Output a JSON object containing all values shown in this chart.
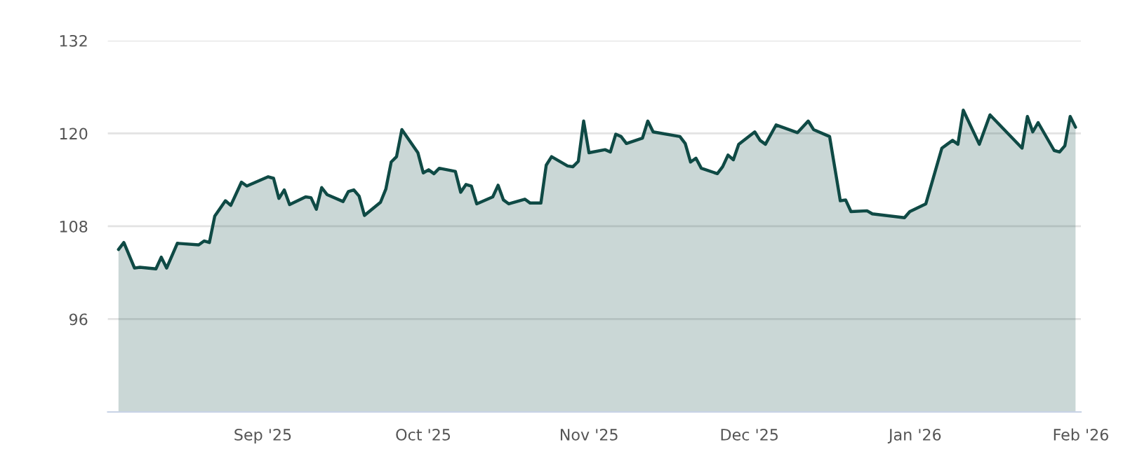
{
  "chart_data": {
    "type": "area",
    "x": [
      "2025-08-05",
      "2025-08-06",
      "2025-08-08",
      "2025-08-09",
      "2025-08-12",
      "2025-08-13",
      "2025-08-14",
      "2025-08-16",
      "2025-08-20",
      "2025-08-21",
      "2025-08-22",
      "2025-08-23",
      "2025-08-25",
      "2025-08-26",
      "2025-08-28",
      "2025-08-29",
      "2025-09-02",
      "2025-09-03",
      "2025-09-04",
      "2025-09-05",
      "2025-09-06",
      "2025-09-09",
      "2025-09-10",
      "2025-09-11",
      "2025-09-12",
      "2025-09-13",
      "2025-09-16",
      "2025-09-17",
      "2025-09-18",
      "2025-09-19",
      "2025-09-20",
      "2025-09-23",
      "2025-09-24",
      "2025-09-25",
      "2025-09-26",
      "2025-09-27",
      "2025-09-30",
      "2025-10-01",
      "2025-10-02",
      "2025-10-03",
      "2025-10-04",
      "2025-10-07",
      "2025-10-08",
      "2025-10-09",
      "2025-10-10",
      "2025-10-11",
      "2025-10-14",
      "2025-10-15",
      "2025-10-16",
      "2025-10-17",
      "2025-10-20",
      "2025-10-21",
      "2025-10-23",
      "2025-10-24",
      "2025-10-25",
      "2025-10-28",
      "2025-10-29",
      "2025-10-30",
      "2025-10-31",
      "2025-11-01",
      "2025-11-04",
      "2025-11-05",
      "2025-11-06",
      "2025-11-07",
      "2025-11-08",
      "2025-11-11",
      "2025-11-12",
      "2025-11-13",
      "2025-11-18",
      "2025-11-19",
      "2025-11-20",
      "2025-11-21",
      "2025-11-22",
      "2025-11-25",
      "2025-11-26",
      "2025-11-27",
      "2025-11-28",
      "2025-11-29",
      "2025-12-02",
      "2025-12-03",
      "2025-12-04",
      "2025-12-06",
      "2025-12-10",
      "2025-12-12",
      "2025-12-13",
      "2025-12-16",
      "2025-12-18",
      "2025-12-19",
      "2025-12-20",
      "2025-12-23",
      "2025-12-24",
      "2025-12-30",
      "2025-12-31",
      "2026-01-03",
      "2026-01-06",
      "2026-01-07",
      "2026-01-08",
      "2026-01-09",
      "2026-01-10",
      "2026-01-13",
      "2026-01-15",
      "2026-01-21",
      "2026-01-22",
      "2026-01-23",
      "2026-01-24",
      "2026-01-27",
      "2026-01-28",
      "2026-01-29",
      "2026-01-30",
      "2026-01-31"
    ],
    "series": [
      {
        "color": "#0f4a45",
        "values": [
          105.0,
          105.9,
          102.6,
          102.7,
          102.5,
          104.0,
          102.6,
          105.8,
          105.6,
          106.1,
          105.9,
          109.3,
          111.3,
          110.7,
          113.7,
          113.2,
          114.4,
          114.2,
          111.6,
          112.7,
          110.8,
          111.8,
          111.7,
          110.2,
          113.0,
          112.1,
          111.2,
          112.5,
          112.7,
          111.9,
          109.4,
          111.1,
          112.8,
          116.3,
          117.0,
          120.5,
          117.5,
          114.9,
          115.3,
          114.8,
          115.5,
          115.1,
          112.4,
          113.4,
          113.2,
          110.9,
          111.8,
          113.3,
          111.4,
          110.9,
          111.5,
          111.0,
          111.0,
          115.9,
          117.0,
          115.8,
          115.7,
          116.4,
          121.6,
          117.5,
          117.9,
          117.6,
          119.9,
          119.6,
          118.7,
          119.4,
          121.6,
          120.2,
          119.6,
          118.7,
          116.3,
          116.8,
          115.5,
          114.8,
          115.7,
          117.2,
          116.6,
          118.6,
          120.2,
          119.1,
          118.6,
          121.1,
          120.1,
          121.6,
          120.5,
          119.6,
          111.3,
          111.4,
          109.9,
          110.0,
          109.6,
          109.1,
          109.9,
          110.9,
          118.1,
          118.6,
          119.1,
          118.6,
          123.0,
          118.6,
          122.4,
          118.1,
          122.2,
          120.2,
          121.4,
          117.8,
          117.6,
          118.4,
          122.2,
          120.8
        ]
      }
    ],
    "xlim": [
      "2025-08-03",
      "2026-02-01"
    ],
    "xticks": [
      {
        "value": "2025-09-01",
        "label": "Sep '25"
      },
      {
        "value": "2025-10-01",
        "label": "Oct '25"
      },
      {
        "value": "2025-11-01",
        "label": "Nov '25"
      },
      {
        "value": "2025-12-01",
        "label": "Dec '25"
      },
      {
        "value": "2026-01-01",
        "label": "Jan '26"
      },
      {
        "value": "2026-02-01",
        "label": "Feb '26"
      }
    ],
    "ylim": [
      84,
      132
    ],
    "yticks": [
      96,
      108,
      120,
      132
    ],
    "grid": "y"
  }
}
